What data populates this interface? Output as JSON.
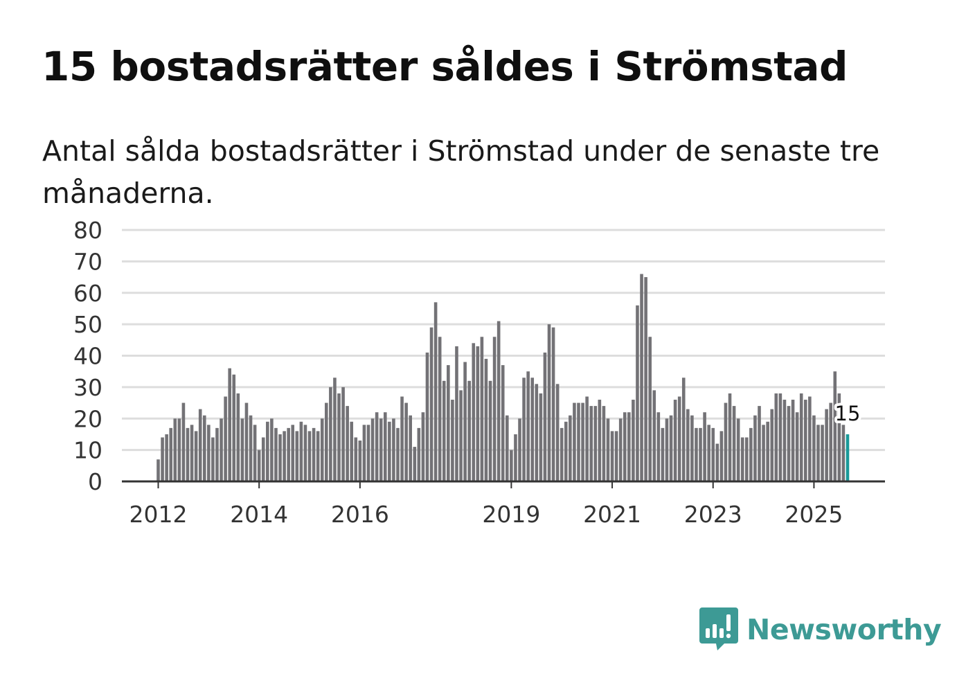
{
  "title": "15 bostadsrätter såldes i Strömstad",
  "subtitle": "Antal sålda bostadsrätter i Strömstad under de senaste tre månaderna.",
  "brand": {
    "name": "Newsworthy",
    "color": "#3d9a95",
    "icon": "bar-chart-speech-icon"
  },
  "colors": {
    "bar": "#737276",
    "highlight": "#1a9a9a",
    "grid": "#dddddd",
    "axis": "#333333"
  },
  "chart_data": {
    "type": "bar",
    "title": "15 bostadsrätter såldes i Strömstad",
    "xlabel": "",
    "ylabel": "",
    "ylim": [
      0,
      80
    ],
    "yticks": [
      "0",
      "10",
      "20",
      "30",
      "40",
      "50",
      "60",
      "70",
      "80"
    ],
    "xticks": [
      {
        "label": "2012",
        "index": 0
      },
      {
        "label": "2014",
        "index": 24
      },
      {
        "label": "2016",
        "index": 48
      },
      {
        "label": "2019",
        "index": 84
      },
      {
        "label": "2021",
        "index": 108
      },
      {
        "label": "2023",
        "index": 132
      },
      {
        "label": "2025",
        "index": 156
      }
    ],
    "start": "2012-01",
    "values": [
      7,
      14,
      15,
      17,
      20,
      20,
      25,
      17,
      18,
      16,
      23,
      21,
      18,
      14,
      17,
      20,
      27,
      36,
      34,
      28,
      20,
      25,
      21,
      18,
      10,
      14,
      19,
      20,
      17,
      15,
      16,
      17,
      18,
      16,
      19,
      18,
      16,
      17,
      16,
      20,
      25,
      30,
      33,
      28,
      30,
      24,
      19,
      14,
      13,
      18,
      18,
      20,
      22,
      20,
      22,
      19,
      20,
      17,
      27,
      25,
      21,
      11,
      17,
      22,
      41,
      49,
      57,
      46,
      32,
      37,
      26,
      43,
      29,
      38,
      32,
      44,
      43,
      46,
      39,
      32,
      46,
      51,
      37,
      21,
      10,
      15,
      20,
      33,
      35,
      33,
      31,
      28,
      41,
      50,
      49,
      31,
      17,
      19,
      21,
      25,
      25,
      25,
      27,
      24,
      24,
      26,
      24,
      20,
      16,
      16,
      20,
      22,
      22,
      26,
      56,
      66,
      65,
      46,
      29,
      22,
      17,
      20,
      21,
      26,
      27,
      33,
      23,
      21,
      17,
      17,
      22,
      18,
      17,
      12,
      16,
      25,
      28,
      24,
      20,
      14,
      14,
      17,
      21,
      24,
      18,
      19,
      23,
      28,
      28,
      26,
      24,
      26,
      22,
      28,
      26,
      27,
      21,
      18,
      18,
      23,
      25,
      35,
      28,
      18,
      15
    ],
    "highlight_last": true,
    "annotation": {
      "label": "15",
      "index": 164
    }
  }
}
